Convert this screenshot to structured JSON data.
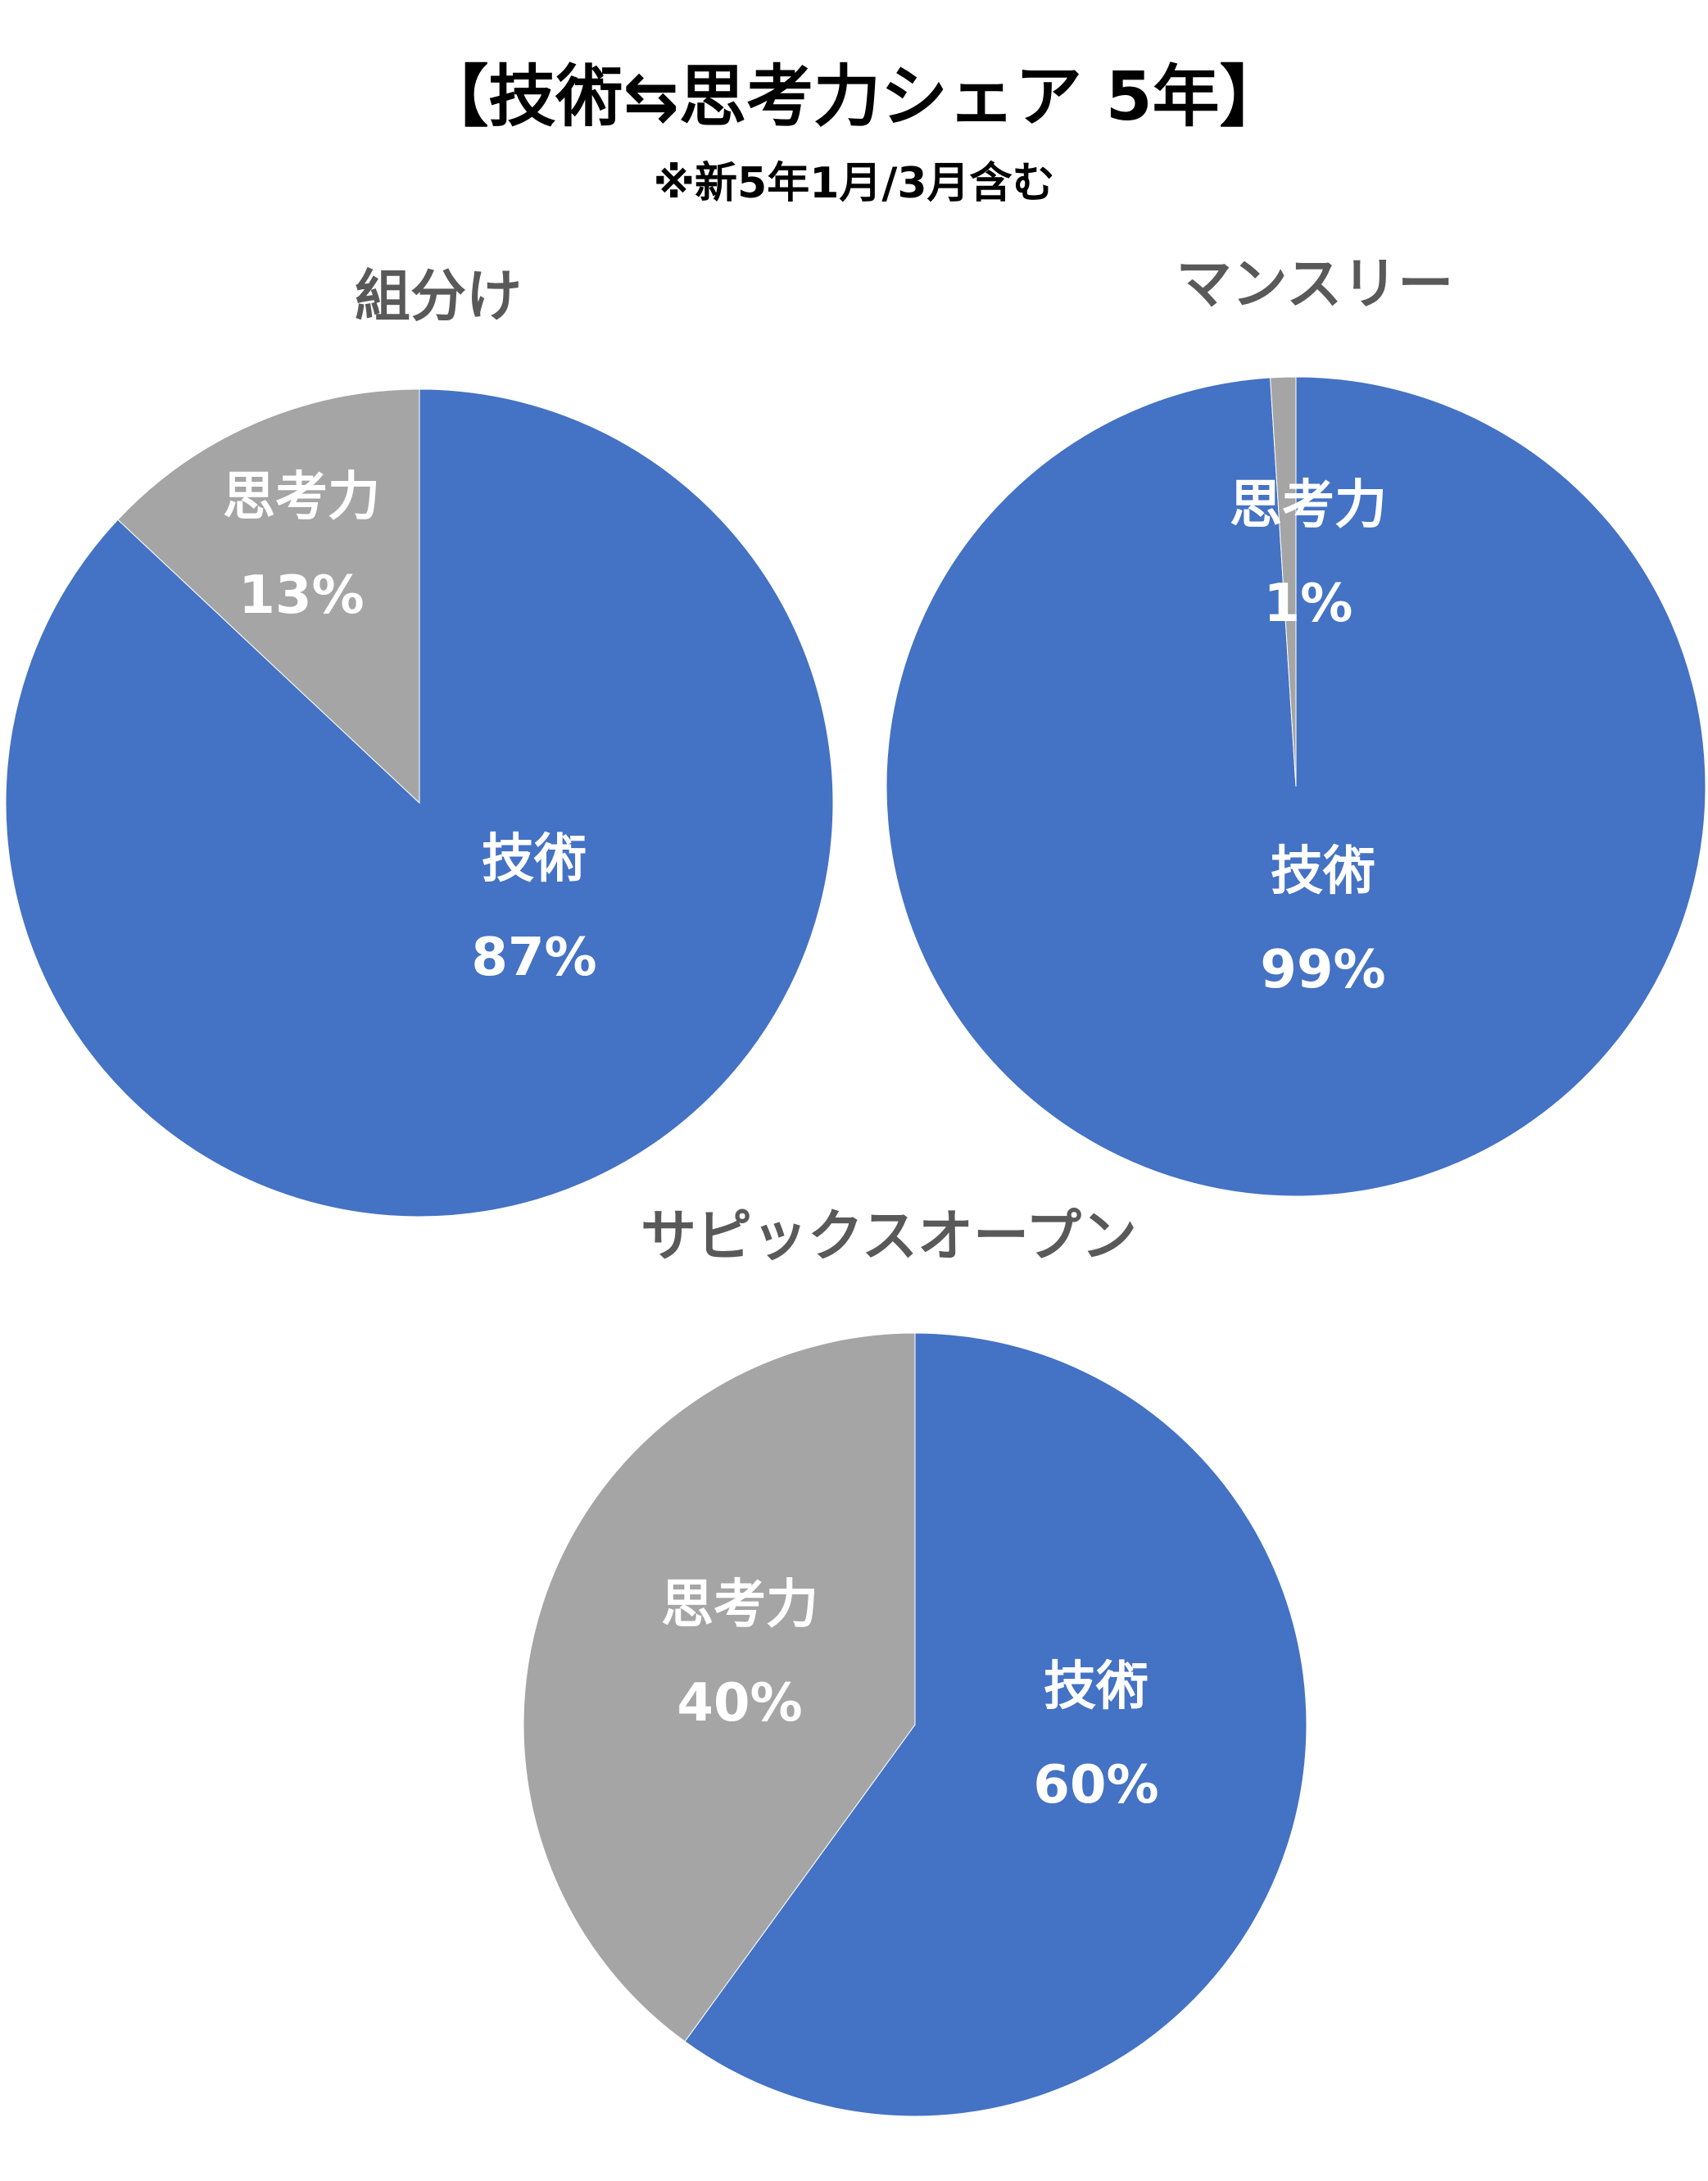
{
  "title": "【技術⇆思考力シェア 5年】",
  "subtitle": "※新5年1月/3月含む",
  "colors": {
    "技術": "#4472C4",
    "思考力": "#A5A5A5"
  },
  "chart_data": [
    {
      "type": "pie",
      "title": "組分け",
      "categories": [
        "技術",
        "思考力"
      ],
      "values": [
        87,
        13
      ],
      "data_labels": [
        "87%",
        "13%"
      ]
    },
    {
      "type": "pie",
      "title": "マンスリー",
      "categories": [
        "技術",
        "思考力"
      ],
      "values": [
        99,
        1
      ],
      "data_labels": [
        "99%",
        "1%"
      ]
    },
    {
      "type": "pie",
      "title": "サピックスオープン",
      "categories": [
        "技術",
        "思考力"
      ],
      "values": [
        60,
        40
      ],
      "data_labels": [
        "60%",
        "40%"
      ]
    }
  ]
}
